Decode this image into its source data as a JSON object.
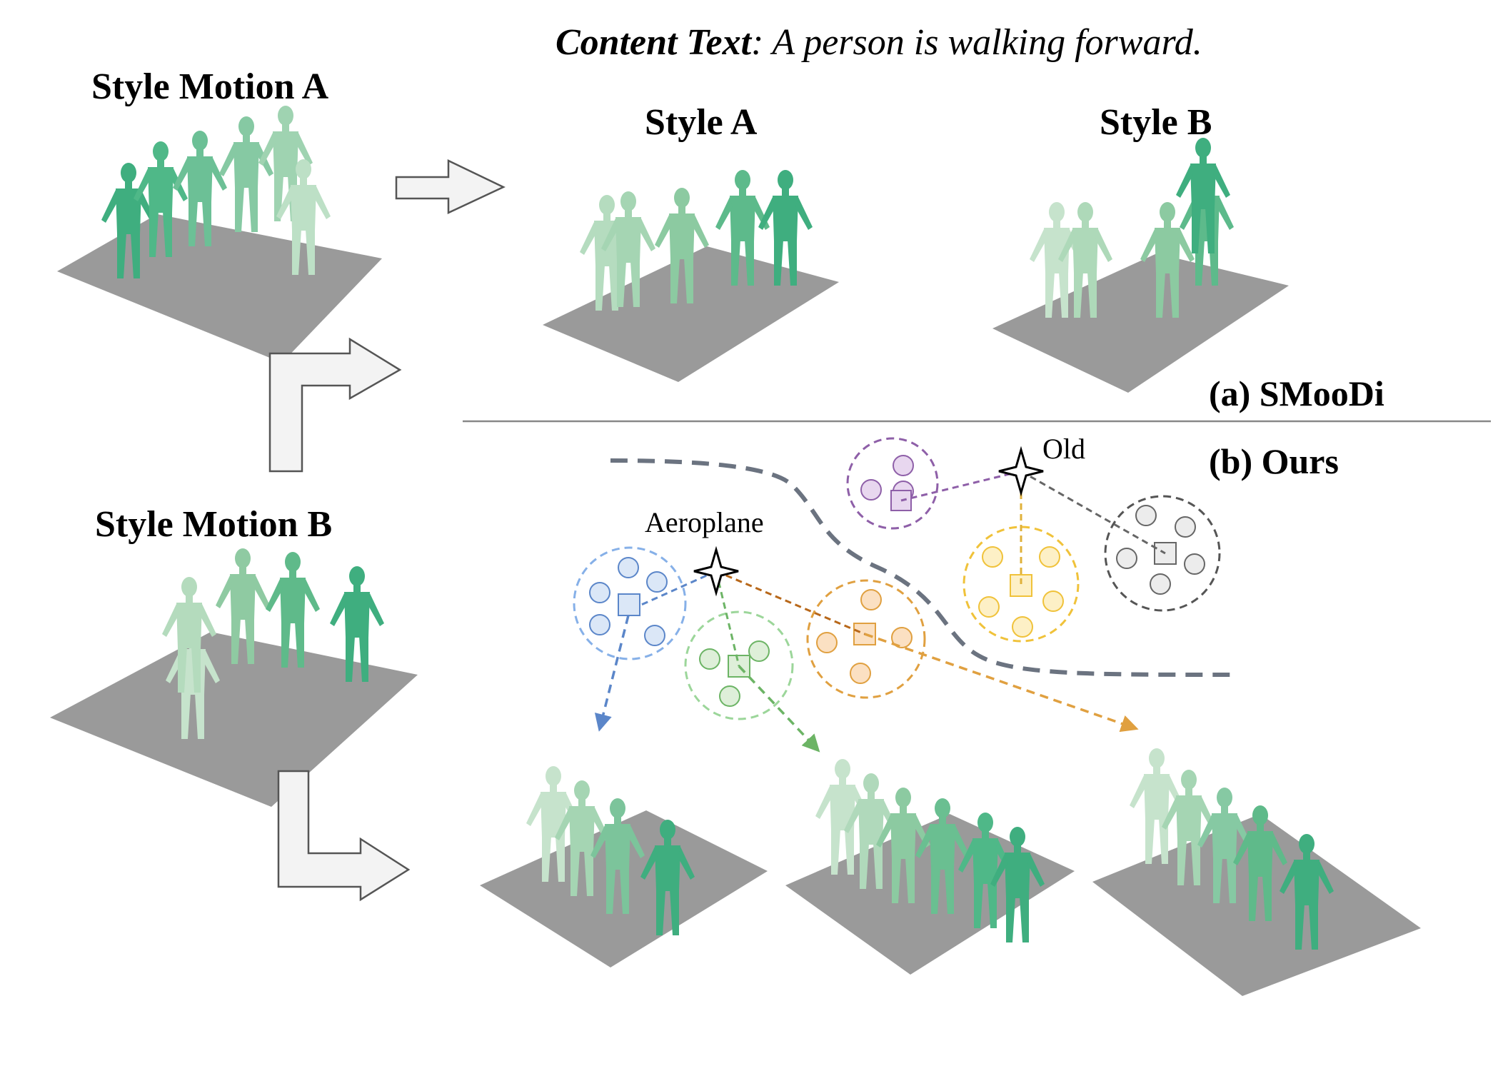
{
  "content_text": {
    "prefix": "Content Text",
    "sentence": ": A person is walking forward."
  },
  "labels": {
    "style_motion_a": "Style Motion A",
    "style_motion_b": "Style Motion B",
    "style_a": "Style A",
    "style_b": "Style B",
    "panel_a": "(a) SMooDi",
    "panel_b": "(b) Ours",
    "aeroplane": "Aeroplane",
    "old": "Old"
  },
  "colors": {
    "blue": "#5b86c9",
    "green": "#6cb465",
    "orange": "#e0a040",
    "purple": "#8e5fa8",
    "yellow": "#f0c23a",
    "gray": "#555555",
    "path": "#6b7380",
    "figure_green": "#3fae7f",
    "floor": "#9a9a9a"
  }
}
